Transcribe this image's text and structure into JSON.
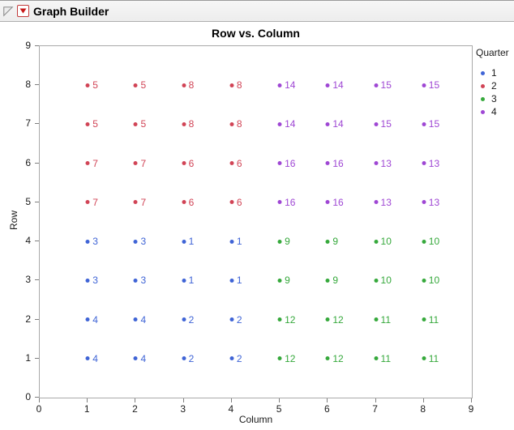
{
  "header": {
    "title": "Graph Builder"
  },
  "chart_data": {
    "type": "scatter",
    "title": "Row vs. Column",
    "xlabel": "Column",
    "ylabel": "Row",
    "xlim": [
      0,
      9
    ],
    "ylim": [
      0,
      9
    ],
    "xticks": [
      0,
      1,
      2,
      3,
      4,
      5,
      6,
      7,
      8,
      9
    ],
    "yticks": [
      0,
      1,
      2,
      3,
      4,
      5,
      6,
      7,
      8,
      9
    ],
    "grid": false,
    "legend": {
      "title": "Quarter",
      "position": "right",
      "entries": [
        {
          "label": "1",
          "color": "#3f64d6"
        },
        {
          "label": "2",
          "color": "#d14456"
        },
        {
          "label": "3",
          "color": "#36a93c"
        },
        {
          "label": "4",
          "color": "#9f47d4"
        }
      ]
    },
    "points": [
      {
        "x": 1,
        "y": 8,
        "label": "5",
        "quarter": "2"
      },
      {
        "x": 2,
        "y": 8,
        "label": "5",
        "quarter": "2"
      },
      {
        "x": 3,
        "y": 8,
        "label": "8",
        "quarter": "2"
      },
      {
        "x": 4,
        "y": 8,
        "label": "8",
        "quarter": "2"
      },
      {
        "x": 5,
        "y": 8,
        "label": "14",
        "quarter": "4"
      },
      {
        "x": 6,
        "y": 8,
        "label": "14",
        "quarter": "4"
      },
      {
        "x": 7,
        "y": 8,
        "label": "15",
        "quarter": "4"
      },
      {
        "x": 8,
        "y": 8,
        "label": "15",
        "quarter": "4"
      },
      {
        "x": 1,
        "y": 7,
        "label": "5",
        "quarter": "2"
      },
      {
        "x": 2,
        "y": 7,
        "label": "5",
        "quarter": "2"
      },
      {
        "x": 3,
        "y": 7,
        "label": "8",
        "quarter": "2"
      },
      {
        "x": 4,
        "y": 7,
        "label": "8",
        "quarter": "2"
      },
      {
        "x": 5,
        "y": 7,
        "label": "14",
        "quarter": "4"
      },
      {
        "x": 6,
        "y": 7,
        "label": "14",
        "quarter": "4"
      },
      {
        "x": 7,
        "y": 7,
        "label": "15",
        "quarter": "4"
      },
      {
        "x": 8,
        "y": 7,
        "label": "15",
        "quarter": "4"
      },
      {
        "x": 1,
        "y": 6,
        "label": "7",
        "quarter": "2"
      },
      {
        "x": 2,
        "y": 6,
        "label": "7",
        "quarter": "2"
      },
      {
        "x": 3,
        "y": 6,
        "label": "6",
        "quarter": "2"
      },
      {
        "x": 4,
        "y": 6,
        "label": "6",
        "quarter": "2"
      },
      {
        "x": 5,
        "y": 6,
        "label": "16",
        "quarter": "4"
      },
      {
        "x": 6,
        "y": 6,
        "label": "16",
        "quarter": "4"
      },
      {
        "x": 7,
        "y": 6,
        "label": "13",
        "quarter": "4"
      },
      {
        "x": 8,
        "y": 6,
        "label": "13",
        "quarter": "4"
      },
      {
        "x": 1,
        "y": 5,
        "label": "7",
        "quarter": "2"
      },
      {
        "x": 2,
        "y": 5,
        "label": "7",
        "quarter": "2"
      },
      {
        "x": 3,
        "y": 5,
        "label": "6",
        "quarter": "2"
      },
      {
        "x": 4,
        "y": 5,
        "label": "6",
        "quarter": "2"
      },
      {
        "x": 5,
        "y": 5,
        "label": "16",
        "quarter": "4"
      },
      {
        "x": 6,
        "y": 5,
        "label": "16",
        "quarter": "4"
      },
      {
        "x": 7,
        "y": 5,
        "label": "13",
        "quarter": "4"
      },
      {
        "x": 8,
        "y": 5,
        "label": "13",
        "quarter": "4"
      },
      {
        "x": 1,
        "y": 4,
        "label": "3",
        "quarter": "1"
      },
      {
        "x": 2,
        "y": 4,
        "label": "3",
        "quarter": "1"
      },
      {
        "x": 3,
        "y": 4,
        "label": "1",
        "quarter": "1"
      },
      {
        "x": 4,
        "y": 4,
        "label": "1",
        "quarter": "1"
      },
      {
        "x": 5,
        "y": 4,
        "label": "9",
        "quarter": "3"
      },
      {
        "x": 6,
        "y": 4,
        "label": "9",
        "quarter": "3"
      },
      {
        "x": 7,
        "y": 4,
        "label": "10",
        "quarter": "3"
      },
      {
        "x": 8,
        "y": 4,
        "label": "10",
        "quarter": "3"
      },
      {
        "x": 1,
        "y": 3,
        "label": "3",
        "quarter": "1"
      },
      {
        "x": 2,
        "y": 3,
        "label": "3",
        "quarter": "1"
      },
      {
        "x": 3,
        "y": 3,
        "label": "1",
        "quarter": "1"
      },
      {
        "x": 4,
        "y": 3,
        "label": "1",
        "quarter": "1"
      },
      {
        "x": 5,
        "y": 3,
        "label": "9",
        "quarter": "3"
      },
      {
        "x": 6,
        "y": 3,
        "label": "9",
        "quarter": "3"
      },
      {
        "x": 7,
        "y": 3,
        "label": "10",
        "quarter": "3"
      },
      {
        "x": 8,
        "y": 3,
        "label": "10",
        "quarter": "3"
      },
      {
        "x": 1,
        "y": 2,
        "label": "4",
        "quarter": "1"
      },
      {
        "x": 2,
        "y": 2,
        "label": "4",
        "quarter": "1"
      },
      {
        "x": 3,
        "y": 2,
        "label": "2",
        "quarter": "1"
      },
      {
        "x": 4,
        "y": 2,
        "label": "2",
        "quarter": "1"
      },
      {
        "x": 5,
        "y": 2,
        "label": "12",
        "quarter": "3"
      },
      {
        "x": 6,
        "y": 2,
        "label": "12",
        "quarter": "3"
      },
      {
        "x": 7,
        "y": 2,
        "label": "11",
        "quarter": "3"
      },
      {
        "x": 8,
        "y": 2,
        "label": "11",
        "quarter": "3"
      },
      {
        "x": 1,
        "y": 1,
        "label": "4",
        "quarter": "1"
      },
      {
        "x": 2,
        "y": 1,
        "label": "4",
        "quarter": "1"
      },
      {
        "x": 3,
        "y": 1,
        "label": "2",
        "quarter": "1"
      },
      {
        "x": 4,
        "y": 1,
        "label": "2",
        "quarter": "1"
      },
      {
        "x": 5,
        "y": 1,
        "label": "12",
        "quarter": "3"
      },
      {
        "x": 6,
        "y": 1,
        "label": "12",
        "quarter": "3"
      },
      {
        "x": 7,
        "y": 1,
        "label": "11",
        "quarter": "3"
      },
      {
        "x": 8,
        "y": 1,
        "label": "11",
        "quarter": "3"
      }
    ]
  }
}
